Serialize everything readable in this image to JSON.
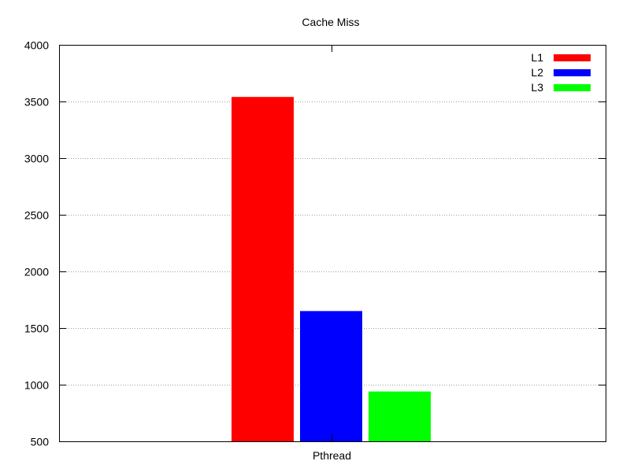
{
  "chart_data": {
    "type": "bar",
    "title": "Cache Miss",
    "xlabel": "",
    "ylabel": "",
    "categories": [
      "Pthread"
    ],
    "series": [
      {
        "name": "L1",
        "color": "#ff0000",
        "values": [
          3540
        ]
      },
      {
        "name": "L2",
        "color": "#0000ff",
        "values": [
          1650
        ]
      },
      {
        "name": "L3",
        "color": "#00ff00",
        "values": [
          940
        ]
      }
    ],
    "ylim": [
      500,
      4000
    ],
    "yticks": [
      "500",
      "1000",
      "1500",
      "2000",
      "2500",
      "3000",
      "3500",
      "4000"
    ],
    "grid": true,
    "legend_position": "top-right"
  }
}
